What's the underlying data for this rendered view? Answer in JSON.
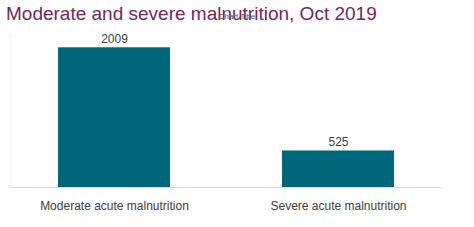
{
  "chart_data": {
    "type": "bar",
    "title": "Moderate and severe malnutrition, Oct 2019",
    "subtitle": "Chart Title",
    "categories": [
      "Moderate acute malnutrition",
      "Severe acute malnutrition"
    ],
    "values": [
      2009,
      525
    ],
    "color": "#00677a",
    "ylim": [
      0,
      2200
    ],
    "grid": false,
    "data_labels": true,
    "tick_labels": "x"
  }
}
